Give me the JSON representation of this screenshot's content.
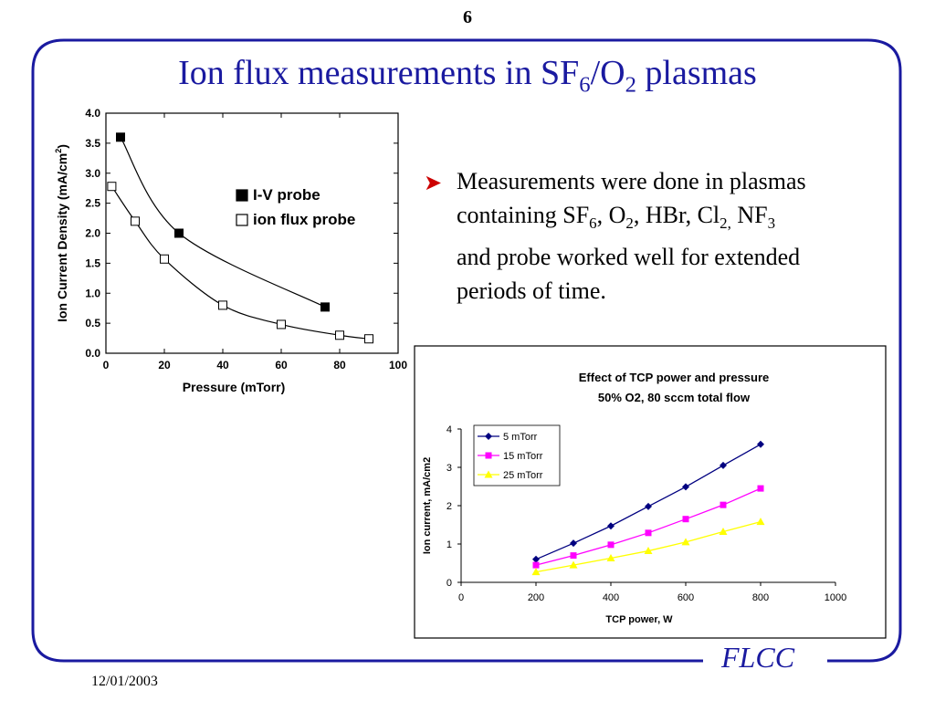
{
  "slide": {
    "page_number": "6",
    "title_main": "Ion flux measurements in SF",
    "title_sub6": "6",
    "title_mid": "/O",
    "title_sub2": "2",
    "title_end": " plasmas",
    "bullet": {
      "line1": "Measurements were done in plasmas",
      "line2a": "containing SF",
      "line2b": "6",
      "line2c": ", O",
      "line2d": "2",
      "line2e": ", HBr, Cl",
      "line2f": "2,",
      "line2g": " NF",
      "line2h": "3",
      "line3": "and probe worked well for extended",
      "line4": "periods of time."
    },
    "brand": "FLCC",
    "date": "12/01/2003",
    "colors": {
      "title": "#1a1aa0",
      "frame": "#1a1aa0",
      "bullet_arrow": "#cc0000"
    }
  },
  "chart_data": [
    {
      "type": "scatter",
      "xlabel": "Pressure (mTorr)",
      "ylabel_main": "Ion Current Density (mA/cm",
      "ylabel_sup": "2",
      "ylabel_end": ")",
      "xlim": [
        0,
        100
      ],
      "ylim": [
        0,
        4.0
      ],
      "xticks": [
        "0",
        "20",
        "40",
        "60",
        "80",
        "100"
      ],
      "yticks": [
        "0.0",
        "0.5",
        "1.0",
        "1.5",
        "2.0",
        "2.5",
        "3.0",
        "3.5",
        "4.0"
      ],
      "legend_position": "upper-right",
      "series": [
        {
          "name": "I-V probe",
          "marker": "filled-square",
          "x": [
            5,
            25,
            75
          ],
          "y": [
            3.6,
            2.0,
            0.77
          ]
        },
        {
          "name": "ion flux probe",
          "marker": "open-square",
          "x": [
            2,
            10,
            20,
            40,
            60,
            80,
            90
          ],
          "y": [
            2.78,
            2.2,
            1.57,
            0.8,
            0.48,
            0.3,
            0.24
          ]
        }
      ]
    },
    {
      "type": "line",
      "title": "Effect of TCP power and pressure",
      "subtitle": "50%  O2, 80 sccm total flow",
      "xlabel": "TCP power, W",
      "ylabel": "Ion current, mA/cm2",
      "xlim": [
        0,
        1000
      ],
      "ylim": [
        0,
        4
      ],
      "xticks": [
        "0",
        "200",
        "400",
        "600",
        "800",
        "1000"
      ],
      "yticks": [
        "0",
        "1",
        "2",
        "3",
        "4"
      ],
      "legend_position": "upper-left",
      "x": [
        200,
        300,
        400,
        500,
        600,
        700,
        800
      ],
      "series": [
        {
          "name": "5 mTorr",
          "color": "#000080",
          "marker": "diamond",
          "values": [
            0.6,
            1.02,
            1.47,
            1.98,
            2.49,
            3.05,
            3.6
          ]
        },
        {
          "name": "15 mTorr",
          "color": "#ff00ff",
          "marker": "square",
          "values": [
            0.45,
            0.7,
            0.98,
            1.29,
            1.65,
            2.02,
            2.45
          ]
        },
        {
          "name": "25 mTorr",
          "color": "#ffff00",
          "marker": "triangle",
          "values": [
            0.27,
            0.45,
            0.63,
            0.82,
            1.05,
            1.32,
            1.58
          ]
        }
      ]
    }
  ]
}
